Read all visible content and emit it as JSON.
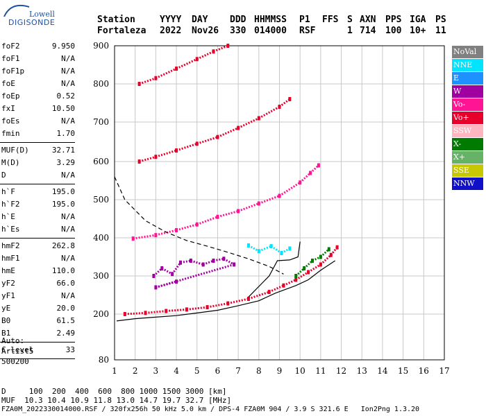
{
  "logo": {
    "line1": "Lowell",
    "line2": "DIGISONDE"
  },
  "header": {
    "row1": [
      "Station",
      "YYYY",
      "DAY",
      "DDD",
      "HHMMSS",
      "P1",
      "FFS",
      "S",
      "AXN",
      "PPS",
      "IGA",
      "PS"
    ],
    "row2": [
      "Fortaleza",
      "2022",
      "Nov26",
      "330",
      "014000",
      "RSF",
      "1",
      "714",
      "100",
      "10+",
      "11"
    ]
  },
  "params": [
    [
      {
        "k": "foF2",
        "v": "9.950"
      },
      {
        "k": "foF1",
        "v": "N/A"
      },
      {
        "k": "foF1p",
        "v": "N/A"
      },
      {
        "k": "foE",
        "v": "N/A"
      },
      {
        "k": "foEp",
        "v": "0.52"
      },
      {
        "k": "fxI",
        "v": "10.50"
      },
      {
        "k": "foEs",
        "v": "N/A"
      },
      {
        "k": "fmin",
        "v": "1.70"
      }
    ],
    [
      {
        "k": "MUF(D)",
        "v": "32.71"
      },
      {
        "k": "M(D)",
        "v": "3.29"
      },
      {
        "k": "D",
        "v": "N/A"
      }
    ],
    [
      {
        "k": "h`F",
        "v": "195.0"
      },
      {
        "k": "h`F2",
        "v": "195.0"
      },
      {
        "k": "h`E",
        "v": "N/A"
      },
      {
        "k": "h`Es",
        "v": "N/A"
      }
    ],
    [
      {
        "k": "hmF2",
        "v": "262.8"
      },
      {
        "k": "hmF1",
        "v": "N/A"
      },
      {
        "k": "hmE",
        "v": "110.0"
      },
      {
        "k": "yF2",
        "v": "66.0"
      },
      {
        "k": "yF1",
        "v": "N/A"
      },
      {
        "k": "yE",
        "v": "20.0"
      },
      {
        "k": "B0",
        "v": "61.5"
      },
      {
        "k": "B1",
        "v": "2.49"
      }
    ],
    [
      {
        "k": "C-level",
        "v": "33"
      }
    ]
  ],
  "auto": [
    "Auto:",
    "Artist5",
    "500200"
  ],
  "footer": {
    "line1": "D     100  200  400  600  800 1000 1500 3000 [km]",
    "line2": "MUF  10.3 10.4 10.9 11.8 13.0 14.7 19.7 32.7 [MHz]",
    "line3": "FZA0M_2022330014000.RSF / 320fx256h 50 kHz 5.0 km / DPS-4 FZA0M 904 / 3.9 S 321.6 E   Ion2Png 1.3.20"
  },
  "legend": [
    {
      "label": "NoVal",
      "bg": "#808080",
      "fg": "#ffffff"
    },
    {
      "label": "NNE",
      "bg": "#00e5ff",
      "fg": "#ffffff"
    },
    {
      "label": "E",
      "bg": "#1e90ff",
      "fg": "#ffffff"
    },
    {
      "label": "W",
      "bg": "#a000a0",
      "fg": "#ffffff"
    },
    {
      "label": "Vo-",
      "bg": "#ff1493",
      "fg": "#ffffff"
    },
    {
      "label": "Vo+",
      "bg": "#e6002a",
      "fg": "#ffffff"
    },
    {
      "label": "SSW",
      "bg": "#ffb6c1",
      "fg": "#ffffff"
    },
    {
      "label": "X-",
      "bg": "#007a00",
      "fg": "#ffffff"
    },
    {
      "label": "X+",
      "bg": "#66b266",
      "fg": "#ffffff"
    },
    {
      "label": "SSE",
      "bg": "#c8c800",
      "fg": "#ffffff"
    },
    {
      "label": "NNW",
      "bg": "#1010c8",
      "fg": "#ffffff"
    }
  ],
  "chart_data": {
    "type": "scatter",
    "x_ticks": [
      "1",
      "2",
      "3",
      "4",
      "5",
      "6",
      "7",
      "8",
      "9",
      "10",
      "11",
      "12",
      "13",
      "14",
      "15",
      "16",
      "17"
    ],
    "y_ticks": [
      "80",
      "200",
      "300",
      "400",
      "500",
      "600",
      "700",
      "800",
      "900"
    ],
    "xlim": [
      1,
      17
    ],
    "ylim": [
      80,
      900
    ],
    "grid": true,
    "legend_position": "right",
    "series": [
      {
        "color": "#e6002a",
        "points": [
          [
            1.5,
            200
          ],
          [
            2.5,
            203
          ],
          [
            3.5,
            208
          ],
          [
            4.5,
            212
          ],
          [
            5.5,
            218
          ],
          [
            6.5,
            228
          ],
          [
            7.5,
            240
          ],
          [
            8.5,
            258
          ],
          [
            9.2,
            275
          ],
          [
            9.8,
            290
          ],
          [
            10.4,
            310
          ],
          [
            11,
            330
          ],
          [
            11.5,
            355
          ],
          [
            11.8,
            375
          ]
        ]
      },
      {
        "color": "#ff1493",
        "points": [
          [
            1.9,
            398
          ],
          [
            3,
            407
          ],
          [
            4,
            420
          ],
          [
            5,
            435
          ],
          [
            6,
            455
          ],
          [
            7,
            470
          ],
          [
            8,
            490
          ],
          [
            9,
            510
          ],
          [
            10,
            545
          ],
          [
            10.5,
            570
          ],
          [
            10.9,
            590
          ]
        ]
      },
      {
        "color": "#e6002a",
        "points": [
          [
            2.2,
            600
          ],
          [
            3,
            612
          ],
          [
            4,
            628
          ],
          [
            5,
            645
          ],
          [
            6,
            662
          ],
          [
            7,
            685
          ],
          [
            8,
            710
          ],
          [
            9,
            740
          ],
          [
            9.5,
            760
          ]
        ]
      },
      {
        "color": "#e6002a",
        "points": [
          [
            2.2,
            800
          ],
          [
            3,
            815
          ],
          [
            4,
            840
          ],
          [
            5,
            865
          ],
          [
            5.8,
            885
          ],
          [
            6.5,
            900
          ]
        ]
      },
      {
        "color": "#a000a0",
        "points": [
          [
            2.9,
            300
          ],
          [
            3.3,
            320
          ],
          [
            3.8,
            305
          ],
          [
            4.2,
            335
          ],
          [
            4.7,
            340
          ],
          [
            5.3,
            330
          ],
          [
            5.8,
            340
          ],
          [
            6.3,
            345
          ],
          [
            6.8,
            330
          ],
          [
            3,
            270
          ],
          [
            4,
            285
          ]
        ]
      },
      {
        "color": "#00e5ff",
        "points": [
          [
            7.5,
            380
          ],
          [
            8,
            365
          ],
          [
            8.6,
            378
          ],
          [
            9.1,
            360
          ],
          [
            9.5,
            372
          ]
        ]
      },
      {
        "color": "#007a00",
        "points": [
          [
            9.8,
            300
          ],
          [
            10.2,
            320
          ],
          [
            10.6,
            340
          ],
          [
            11,
            350
          ],
          [
            11.4,
            370
          ]
        ]
      }
    ],
    "curves": [
      {
        "name": "profile",
        "style": "solid",
        "points": [
          [
            1.1,
            182
          ],
          [
            2,
            188
          ],
          [
            3,
            192
          ],
          [
            4,
            196
          ],
          [
            5,
            203
          ],
          [
            6,
            210
          ],
          [
            7,
            222
          ],
          [
            8,
            235
          ],
          [
            8.8,
            255
          ],
          [
            9.8,
            275
          ],
          [
            10.4,
            290
          ],
          [
            11,
            315
          ],
          [
            11.7,
            340
          ]
        ]
      },
      {
        "name": "profile_top",
        "style": "solid",
        "points": [
          [
            7.5,
            245
          ],
          [
            8.5,
            300
          ],
          [
            8.9,
            340
          ],
          [
            9.5,
            342
          ],
          [
            9.9,
            350
          ],
          [
            10,
            390
          ]
        ]
      },
      {
        "name": "muf",
        "style": "dashed",
        "points": [
          [
            1,
            560
          ],
          [
            1.5,
            500
          ],
          [
            2.5,
            445
          ],
          [
            3.5,
            415
          ],
          [
            4.5,
            393
          ],
          [
            5.5,
            378
          ],
          [
            6.5,
            362
          ],
          [
            7.5,
            345
          ],
          [
            8.5,
            325
          ],
          [
            9.2,
            305
          ]
        ]
      }
    ]
  }
}
